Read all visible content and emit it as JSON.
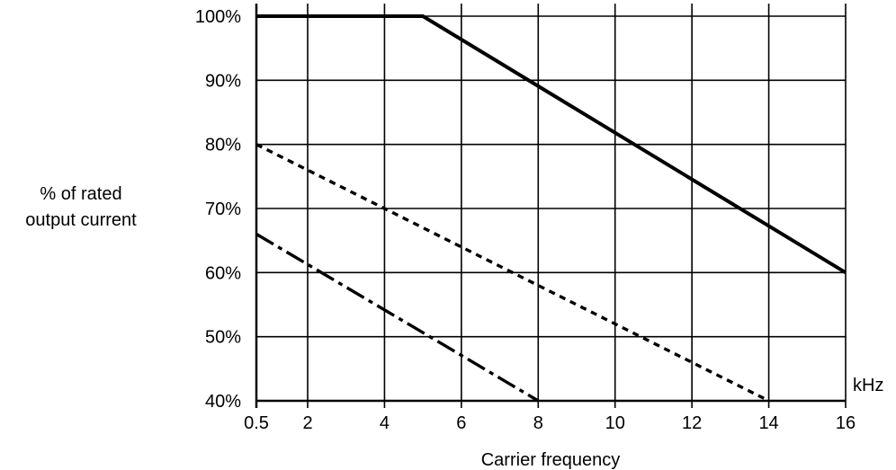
{
  "chart_data": {
    "type": "line",
    "xlabel": "Carrier frequency",
    "ylabel_lines": [
      "% of rated",
      "output current"
    ],
    "x_unit": "kHz",
    "x_ticks": [
      0.5,
      2,
      4,
      6,
      8,
      10,
      12,
      14,
      16
    ],
    "x_tick_labels": [
      "0.5",
      "2",
      "4",
      "6",
      "8",
      "10",
      "12",
      "14",
      "16"
    ],
    "y_ticks": [
      40,
      50,
      60,
      70,
      80,
      90,
      100
    ],
    "y_tick_labels": [
      "40%",
      "50%",
      "60%",
      "70%",
      "80%",
      "90%",
      "100%"
    ],
    "xlim": [
      0.5,
      16
    ],
    "ylim": [
      40,
      100
    ],
    "grid": true,
    "series": [
      {
        "style": "solid",
        "color": "#000000",
        "points": [
          [
            0.5,
            100
          ],
          [
            5,
            100
          ],
          [
            16,
            60
          ]
        ]
      },
      {
        "style": "dotted",
        "color": "#000000",
        "points": [
          [
            0.5,
            80
          ],
          [
            14,
            40
          ]
        ]
      },
      {
        "style": "dash-dot",
        "color": "#000000",
        "points": [
          [
            0.5,
            66
          ],
          [
            8,
            40
          ]
        ]
      }
    ]
  }
}
